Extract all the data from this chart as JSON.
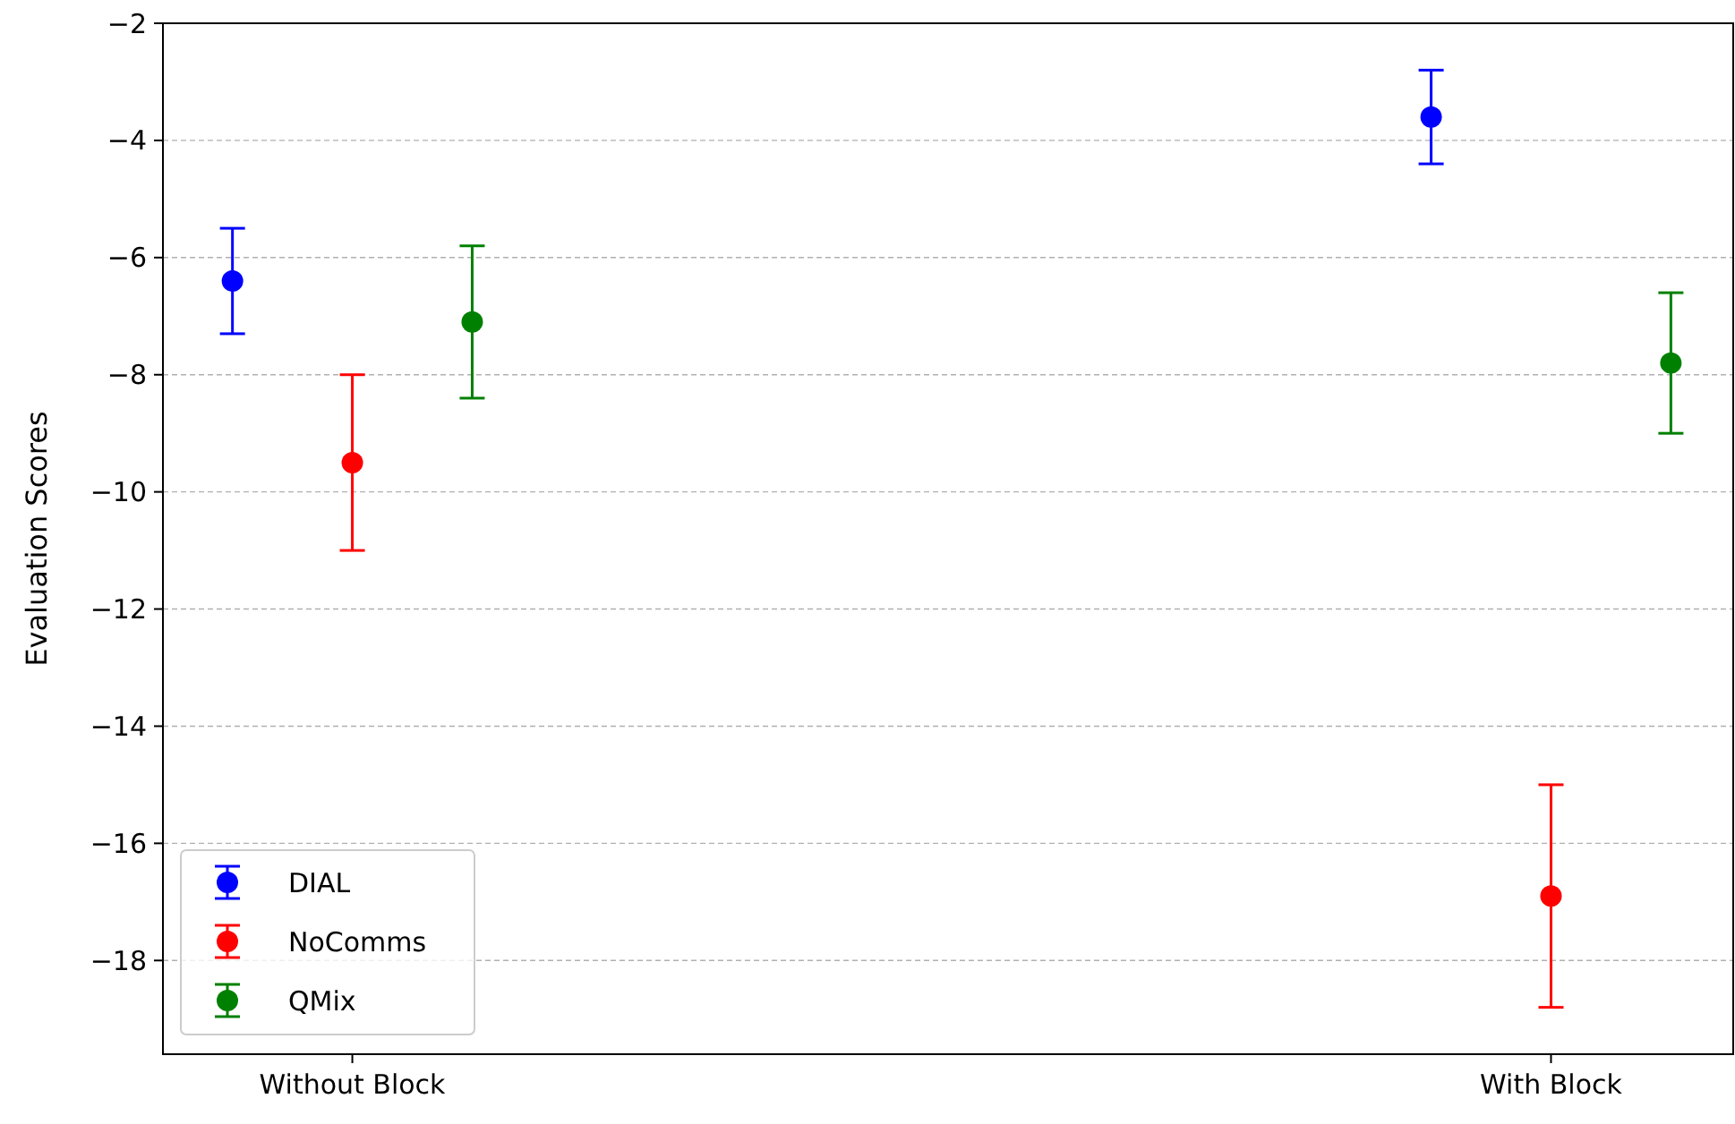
{
  "chart_data": {
    "type": "scatter",
    "ylabel": "Evaluation Scores",
    "categories": [
      "Without Block",
      "With Block"
    ],
    "ylim": [
      -19.6,
      -2
    ],
    "yticks": [
      -18,
      -16,
      -14,
      -12,
      -10,
      -8,
      -6,
      -4,
      -2
    ],
    "grid": "y",
    "legend": "bottom left",
    "marker": "circle",
    "series": [
      {
        "name": "DIAL",
        "color": "#0000ff",
        "x": [
          "Without Block",
          "With Block"
        ],
        "values": [
          -6.4,
          -3.6
        ],
        "errors": [
          0.9,
          0.8
        ]
      },
      {
        "name": "NoComms",
        "color": "#ff0000",
        "x": [
          "Without Block",
          "With Block"
        ],
        "values": [
          -9.5,
          -16.9
        ],
        "errors": [
          1.5,
          1.9
        ]
      },
      {
        "name": "QMix",
        "color": "#008000",
        "x": [
          "Without Block",
          "With Block"
        ],
        "values": [
          -7.1,
          -7.8
        ],
        "errors": [
          1.3,
          1.2
        ]
      }
    ]
  }
}
